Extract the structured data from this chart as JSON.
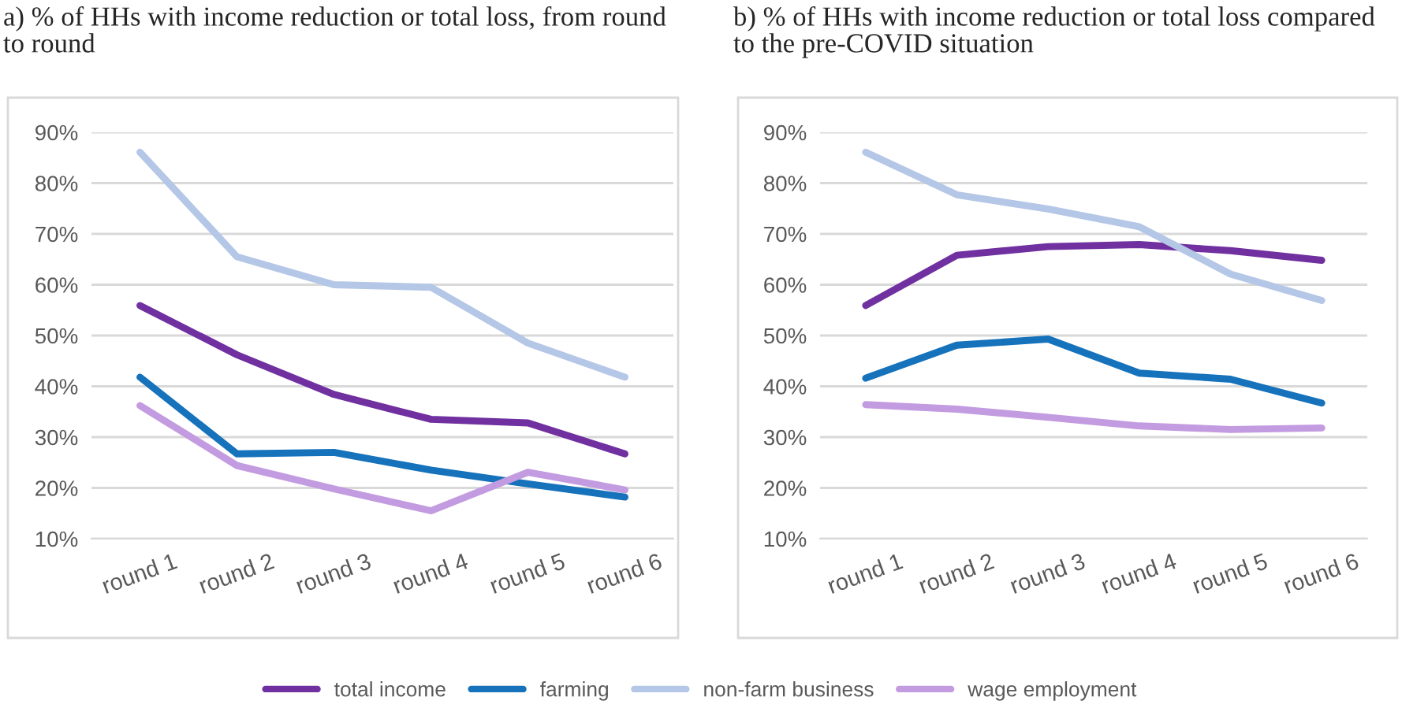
{
  "chart_data": [
    {
      "type": "line",
      "title": "a) % of HHs with income reduction or total loss, from round to round",
      "categories": [
        "round 1",
        "round 2",
        "round 3",
        "round 4",
        "round 5",
        "round 6"
      ],
      "ylim": [
        10,
        90
      ],
      "yticks": [
        {
          "value": 10,
          "label": "10%"
        },
        {
          "value": 20,
          "label": "20%"
        },
        {
          "value": 30,
          "label": "30%"
        },
        {
          "value": 40,
          "label": "40%"
        },
        {
          "value": 50,
          "label": "50%"
        },
        {
          "value": 60,
          "label": "60%"
        },
        {
          "value": 70,
          "label": "70%"
        },
        {
          "value": 80,
          "label": "80%"
        },
        {
          "value": 90,
          "label": "90%"
        }
      ],
      "grid": "y",
      "legend": "bottom",
      "marker": "none",
      "line_style": "solid",
      "series": [
        {
          "name": "total income",
          "color": "#7030a0",
          "values": [
            55.9,
            46.2,
            38.4,
            33.5,
            32.8,
            26.7
          ]
        },
        {
          "name": "farming",
          "color": "#1572bb",
          "values": [
            41.8,
            26.7,
            27.0,
            23.5,
            20.8,
            18.2
          ]
        },
        {
          "name": "non-farm business",
          "color": "#b4c7e7",
          "values": [
            86.1,
            65.5,
            60.0,
            59.5,
            48.5,
            41.8
          ]
        },
        {
          "name": "wage employment",
          "color": "#c39be0",
          "values": [
            36.2,
            24.4,
            19.8,
            15.5,
            23.1,
            19.6
          ]
        }
      ]
    },
    {
      "type": "line",
      "title": "b) % of HHs with income reduction or total loss compared to the pre-COVID situation",
      "categories": [
        "round 1",
        "round 2",
        "round 3",
        "round 4",
        "round 5",
        "round 6"
      ],
      "ylim": [
        10,
        90
      ],
      "yticks": [
        {
          "value": 10,
          "label": "10%"
        },
        {
          "value": 20,
          "label": "20%"
        },
        {
          "value": 30,
          "label": "30%"
        },
        {
          "value": 40,
          "label": "40%"
        },
        {
          "value": 50,
          "label": "50%"
        },
        {
          "value": 60,
          "label": "60%"
        },
        {
          "value": 70,
          "label": "70%"
        },
        {
          "value": 80,
          "label": "80%"
        },
        {
          "value": 90,
          "label": "90%"
        }
      ],
      "grid": "y",
      "marker": "none",
      "line_style": "solid",
      "series": [
        {
          "color": "#7030a0",
          "values": [
            55.9,
            65.8,
            67.5,
            67.9,
            66.7,
            64.8
          ]
        },
        {
          "color": "#1572bb",
          "values": [
            41.6,
            48.1,
            49.3,
            42.6,
            41.4,
            36.7
          ]
        },
        {
          "color": "#b4c7e7",
          "values": [
            86.1,
            77.7,
            74.9,
            71.4,
            62.1,
            56.9
          ]
        },
        {
          "color": "#c39be0",
          "values": [
            36.4,
            35.5,
            33.9,
            32.2,
            31.5,
            31.8
          ]
        }
      ]
    }
  ]
}
